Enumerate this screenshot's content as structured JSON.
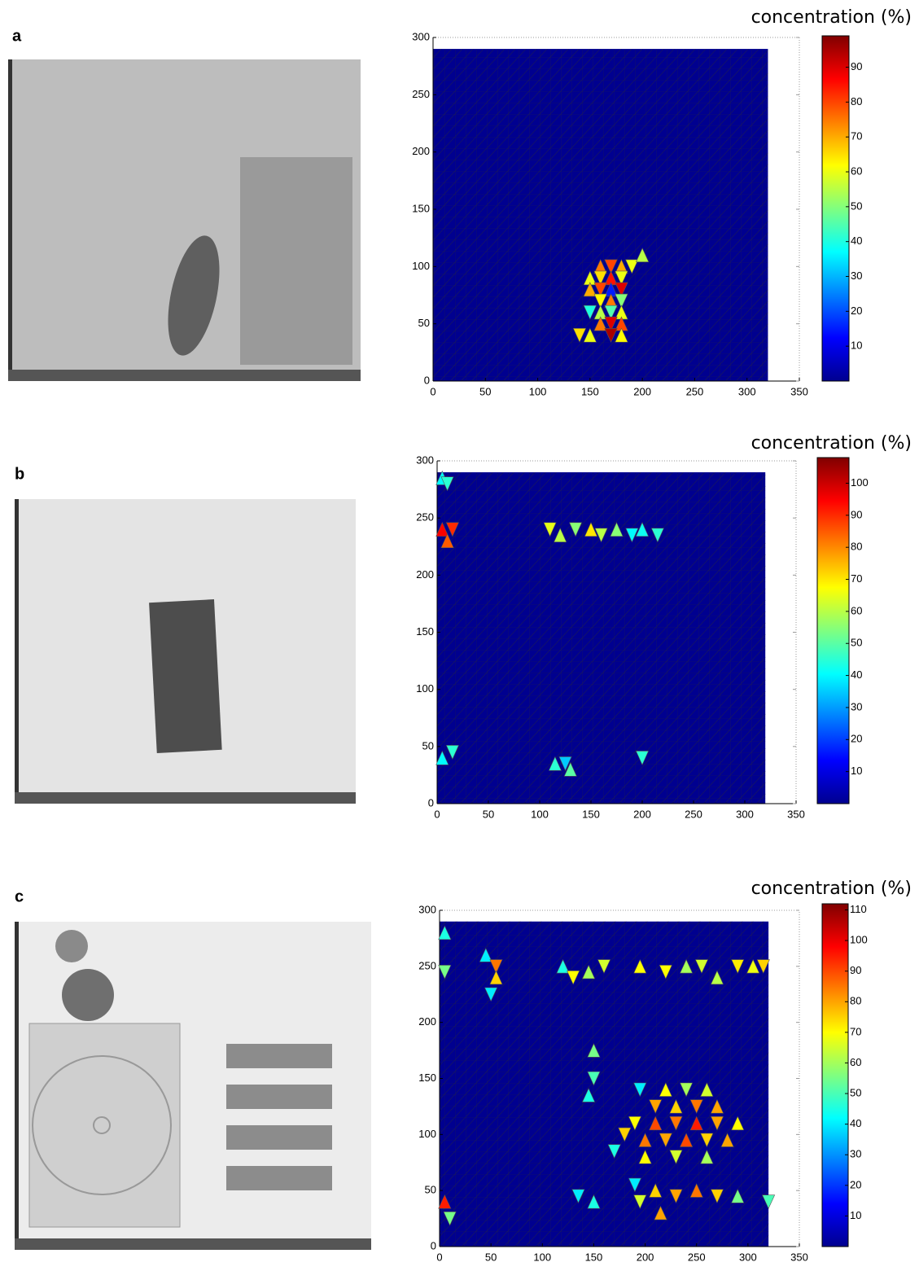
{
  "chart_data": [
    {
      "type": "heatmap",
      "label": "a",
      "colorbar_label": "concentration (%)",
      "xlim": [
        0,
        350
      ],
      "xticks": [
        0,
        50,
        100,
        150,
        200,
        250,
        300,
        350
      ],
      "ylim": [
        0,
        300
      ],
      "yticks": [
        0,
        50,
        100,
        150,
        200,
        250,
        300
      ],
      "mesh_xlim": [
        0,
        320
      ],
      "mesh_ylim": [
        0,
        290
      ],
      "clim": [
        0,
        99
      ],
      "cticks": [
        10,
        20,
        30,
        40,
        50,
        60,
        70,
        80,
        90
      ],
      "cells": {
        "x": [
          160,
          170,
          180,
          190,
          200,
          160,
          170,
          180,
          150,
          160,
          170,
          180,
          150,
          160,
          170,
          180,
          160,
          170,
          180,
          150,
          160,
          170,
          180,
          140,
          150,
          170,
          180
        ],
        "y": [
          100,
          100,
          100,
          100,
          110,
          90,
          90,
          90,
          90,
          80,
          80,
          80,
          80,
          70,
          70,
          70,
          60,
          60,
          60,
          60,
          50,
          50,
          50,
          40,
          40,
          40,
          40
        ],
        "values": [
          75,
          80,
          70,
          60,
          55,
          65,
          85,
          60,
          60,
          80,
          15,
          90,
          70,
          62,
          75,
          50,
          55,
          45,
          60,
          40,
          75,
          90,
          80,
          65,
          60,
          95,
          62
        ]
      }
    },
    {
      "type": "heatmap",
      "label": "b",
      "colorbar_label": "concentration (%)",
      "xlim": [
        0,
        350
      ],
      "xticks": [
        0,
        50,
        100,
        150,
        200,
        250,
        300,
        350
      ],
      "ylim": [
        0,
        300
      ],
      "yticks": [
        0,
        50,
        100,
        150,
        200,
        250,
        300
      ],
      "mesh_xlim": [
        0,
        320
      ],
      "mesh_ylim": [
        0,
        290
      ],
      "clim": [
        0,
        108
      ],
      "cticks": [
        10,
        20,
        30,
        40,
        50,
        60,
        70,
        80,
        90,
        100
      ],
      "cells": {
        "x": [
          5,
          10,
          5,
          15,
          10,
          110,
          120,
          135,
          150,
          160,
          175,
          190,
          200,
          215,
          5,
          15,
          115,
          125,
          130,
          200
        ],
        "y": [
          285,
          280,
          240,
          240,
          230,
          240,
          235,
          240,
          240,
          235,
          240,
          235,
          240,
          235,
          40,
          45,
          35,
          35,
          30,
          40
        ],
        "values": [
          40,
          45,
          95,
          90,
          85,
          65,
          60,
          55,
          70,
          60,
          55,
          40,
          42,
          45,
          40,
          45,
          45,
          35,
          50,
          45
        ]
      }
    },
    {
      "type": "heatmap",
      "label": "c",
      "colorbar_label": "concentration (%)",
      "xlim": [
        0,
        350
      ],
      "xticks": [
        0,
        50,
        100,
        150,
        200,
        250,
        300,
        350
      ],
      "ylim": [
        0,
        300
      ],
      "yticks": [
        0,
        50,
        100,
        150,
        200,
        250,
        300
      ],
      "mesh_xlim": [
        0,
        320
      ],
      "mesh_ylim": [
        0,
        290
      ],
      "clim": [
        0,
        112
      ],
      "cticks": [
        10,
        20,
        30,
        40,
        50,
        60,
        70,
        80,
        90,
        100,
        110
      ],
      "cells": {
        "x": [
          5,
          5,
          45,
          55,
          55,
          50,
          120,
          130,
          145,
          160,
          195,
          220,
          240,
          255,
          270,
          290,
          305,
          315,
          150,
          150,
          145,
          195,
          220,
          240,
          260,
          210,
          230,
          250,
          270,
          190,
          210,
          230,
          250,
          270,
          290,
          180,
          200,
          220,
          240,
          260,
          280,
          170,
          200,
          230,
          260,
          135,
          150,
          190,
          210,
          230,
          250,
          270,
          290,
          195,
          215,
          320,
          5,
          10
        ],
        "y": [
          280,
          245,
          260,
          250,
          240,
          225,
          250,
          240,
          245,
          250,
          250,
          245,
          250,
          250,
          240,
          250,
          250,
          250,
          175,
          150,
          135,
          140,
          140,
          140,
          140,
          125,
          125,
          125,
          125,
          110,
          110,
          110,
          110,
          110,
          110,
          100,
          95,
          95,
          95,
          95,
          95,
          85,
          80,
          80,
          80,
          45,
          40,
          55,
          50,
          45,
          50,
          45,
          45,
          40,
          30,
          40,
          40,
          25
        ],
        "values": [
          45,
          55,
          40,
          85,
          75,
          40,
          45,
          70,
          60,
          65,
          70,
          70,
          60,
          65,
          62,
          72,
          68,
          75,
          55,
          50,
          45,
          40,
          70,
          60,
          65,
          80,
          75,
          85,
          80,
          70,
          90,
          85,
          95,
          80,
          70,
          75,
          85,
          80,
          90,
          75,
          80,
          45,
          70,
          65,
          60,
          40,
          45,
          40,
          75,
          80,
          85,
          75,
          55,
          65,
          80,
          50,
          95,
          55
        ]
      }
    }
  ]
}
